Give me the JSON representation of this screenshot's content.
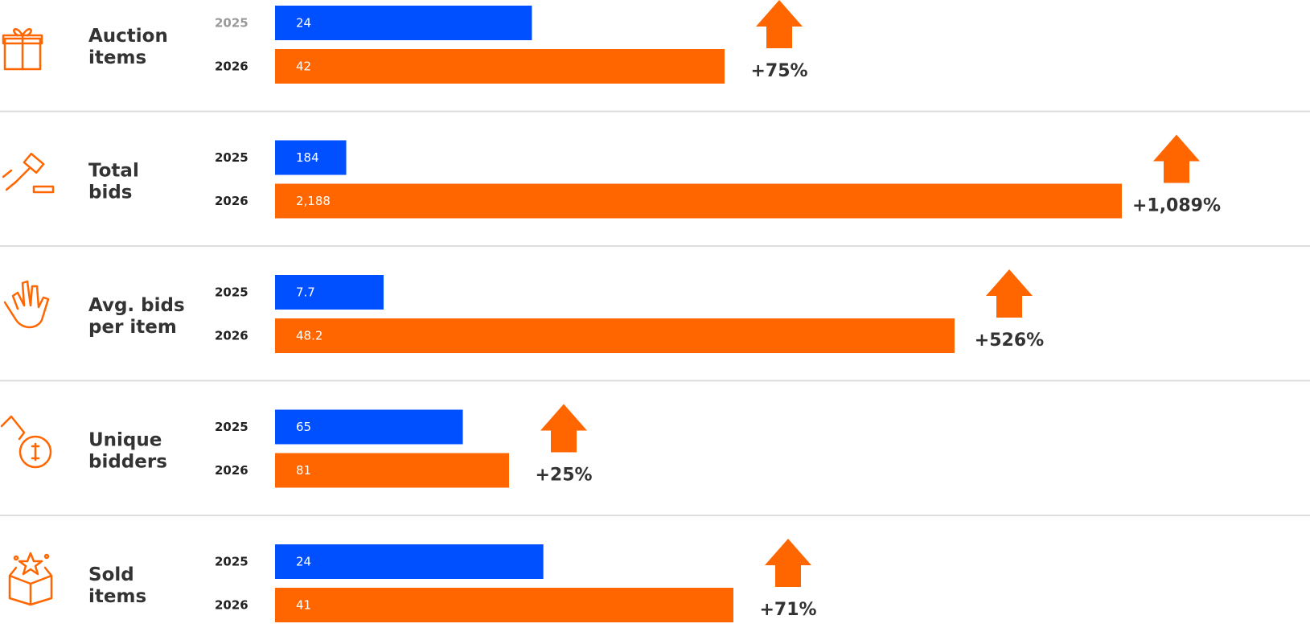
{
  "chart_data": {
    "type": "bar",
    "series": [
      {
        "name": "2025",
        "color": "#0050ff"
      },
      {
        "name": "2026",
        "color": "#ff6600"
      }
    ],
    "rows": [
      {
        "label": "Auction items",
        "values": [
          24,
          42
        ],
        "change": "+75%"
      },
      {
        "label": "Total bids",
        "values": [
          184,
          2188
        ],
        "value_labels": [
          "184",
          "2,188"
        ],
        "change": "+1,089%"
      },
      {
        "label": "Avg. bids per item",
        "values": [
          7.7,
          48.2
        ],
        "change": "+526%"
      },
      {
        "label": "Unique bidders",
        "values": [
          65,
          81
        ],
        "change": "+25%"
      },
      {
        "label": "Sold items",
        "values": [
          24,
          41
        ],
        "change": "+71%"
      }
    ]
  }
}
